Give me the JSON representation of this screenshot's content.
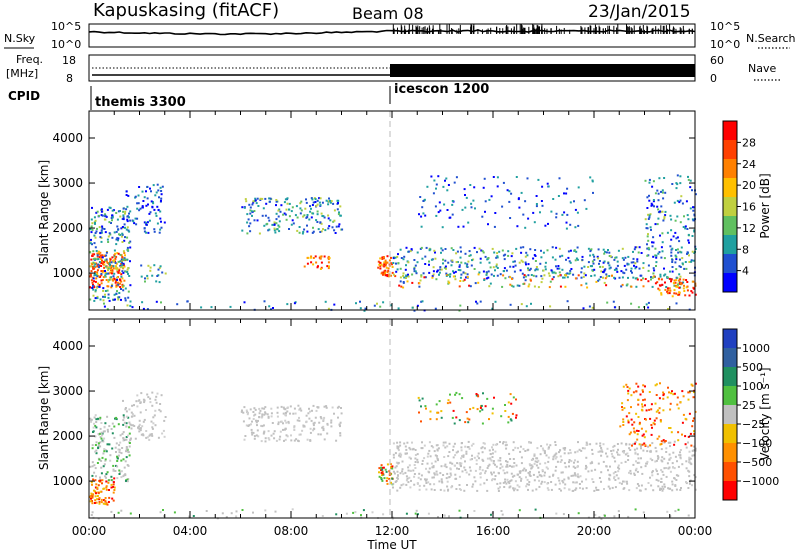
{
  "header": {
    "station": "Kapuskasing (fitACF)",
    "beam": "Beam 08",
    "date": "23/Jan/2015"
  },
  "strip_labels": {
    "nsky": "N.Sky",
    "nsearch": "N.Search",
    "nsky_ticks": [
      "10^5",
      "10^0"
    ],
    "freq": "Freq.",
    "freq_unit": "[MHz]",
    "freq_ticks": [
      "18",
      "8"
    ],
    "nave": "Nave",
    "nave_ticks": [
      "60",
      "0"
    ],
    "cpid": "CPID"
  },
  "cpid_segments": [
    {
      "label": "themis 3300",
      "start_hour": 0
    },
    {
      "label": "icescon 1200",
      "start_hour": 12
    }
  ],
  "chart_data": [
    {
      "type": "heatmap",
      "panel": "power",
      "xlabel": "Time UT",
      "ylabel": "Slant Range [km]",
      "x_ticks": [
        "00:00",
        "04:00",
        "08:00",
        "12:00",
        "16:00",
        "20:00",
        "00:00"
      ],
      "xlim_hours": [
        0,
        24
      ],
      "ylim_km": [
        180,
        4600
      ],
      "y_ticks": [
        1000,
        2000,
        3000,
        4000
      ],
      "colorbar": {
        "label": "Power [dB]",
        "ticks": [
          "28",
          "24",
          "20",
          "16",
          "12",
          "8",
          "4"
        ],
        "colors": [
          "#ff0000",
          "#ff4000",
          "#ff8000",
          "#ffc000",
          "#c0d040",
          "#60c060",
          "#20a0a0",
          "#2050d0",
          "#0000ff"
        ]
      },
      "features": [
        {
          "t": [
            0.0,
            1.5
          ],
          "r": [
            400,
            2600
          ],
          "level": "high"
        },
        {
          "t": [
            1.3,
            3.0
          ],
          "r": [
            1800,
            3000
          ],
          "level": "low"
        },
        {
          "t": [
            6.0,
            10.0
          ],
          "r": [
            1800,
            2800
          ],
          "level": "mid"
        },
        {
          "t": [
            11.4,
            12.0
          ],
          "r": [
            900,
            1400
          ],
          "level": "high"
        },
        {
          "t": [
            12.0,
            24.0
          ],
          "r": [
            800,
            2000
          ],
          "level": "mid"
        }
      ]
    },
    {
      "type": "heatmap",
      "panel": "velocity",
      "xlabel": "Time UT",
      "ylabel": "Slant Range [km]",
      "x_ticks": [
        "00:00",
        "04:00",
        "08:00",
        "12:00",
        "16:00",
        "20:00",
        "00:00"
      ],
      "xlim_hours": [
        0,
        24
      ],
      "ylim_km": [
        180,
        4600
      ],
      "y_ticks": [
        1000,
        2000,
        3000,
        4000
      ],
      "colorbar": {
        "label": "Velocity [m s⁻¹]",
        "ticks": [
          "1000",
          "500",
          "100",
          "25",
          "−25",
          "−100",
          "−500",
          "−1000"
        ],
        "colors": [
          "#2040c0",
          "#3060a0",
          "#209060",
          "#50c040",
          "#c0c0c0",
          "#f0c000",
          "#ff9000",
          "#ff5000",
          "#ff0000"
        ]
      }
    }
  ]
}
